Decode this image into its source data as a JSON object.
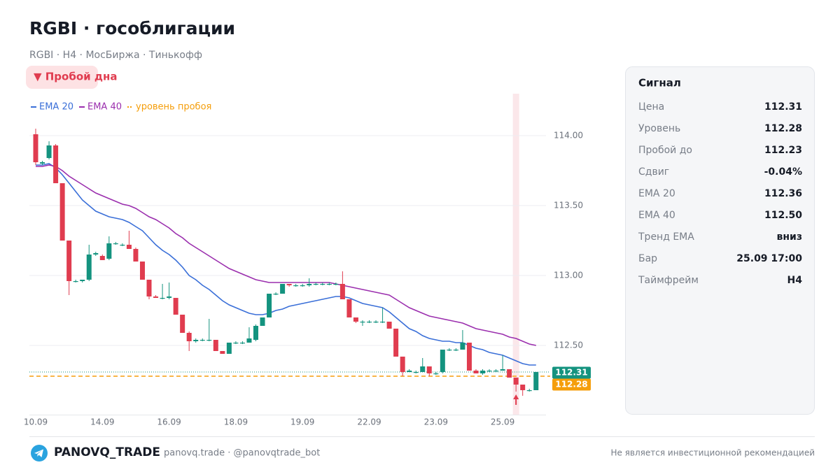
{
  "header": {
    "title": "RGBI · гособлигации",
    "subtitle": "RGBI · H4 · МосБиржа · Тинькофф",
    "badge": "▼  Пробой дна"
  },
  "chart_data": {
    "type": "candlestick",
    "categories": [
      "10.09",
      null,
      null,
      null,
      null,
      null,
      null,
      null,
      null,
      null,
      "14.09",
      null,
      null,
      null,
      null,
      null,
      null,
      null,
      null,
      null,
      "16.09",
      null,
      null,
      null,
      null,
      null,
      null,
      null,
      null,
      null,
      "18.09",
      null,
      null,
      null,
      null,
      null,
      null,
      null,
      null,
      null,
      "19.09",
      null,
      null,
      null,
      null,
      null,
      null,
      null,
      null,
      null,
      "22.09",
      null,
      null,
      null,
      null,
      null,
      null,
      null,
      null,
      null,
      "23.09",
      null,
      null,
      null,
      null,
      null,
      null,
      null,
      null,
      null,
      "25.09",
      null,
      null,
      null,
      null,
      null
    ],
    "open": [
      114.01,
      113.8,
      113.84,
      113.93,
      113.66,
      113.25,
      112.96,
      112.96,
      112.97,
      113.15,
      113.14,
      113.12,
      113.23,
      113.22,
      113.22,
      113.19,
      113.1,
      112.97,
      112.85,
      112.84,
      112.84,
      112.84,
      112.72,
      112.59,
      112.53,
      112.54,
      112.54,
      112.54,
      112.46,
      112.44,
      112.52,
      112.52,
      112.52,
      112.54,
      112.64,
      112.7,
      112.87,
      112.87,
      112.94,
      112.93,
      112.93,
      112.93,
      112.94,
      112.94,
      112.94,
      112.94,
      112.94,
      112.83,
      112.7,
      112.67,
      112.67,
      112.67,
      112.67,
      112.67,
      112.62,
      112.42,
      112.31,
      112.31,
      112.31,
      112.35,
      112.3,
      112.31,
      112.47,
      112.47,
      112.47,
      112.52,
      112.32,
      112.3,
      112.32,
      112.32,
      112.32,
      112.33,
      112.27,
      112.22,
      112.18,
      112.18
    ],
    "high": [
      114.05,
      113.82,
      113.96,
      113.94,
      113.66,
      113.25,
      112.97,
      112.97,
      113.22,
      113.17,
      113.15,
      113.28,
      113.24,
      113.23,
      113.32,
      113.2,
      113.1,
      112.97,
      112.86,
      112.94,
      112.95,
      112.84,
      112.72,
      112.6,
      112.55,
      112.55,
      112.69,
      112.54,
      112.46,
      112.52,
      112.53,
      112.53,
      112.63,
      112.65,
      112.7,
      112.87,
      112.88,
      112.94,
      112.94,
      112.94,
      112.94,
      112.98,
      112.95,
      112.95,
      112.95,
      112.95,
      113.03,
      112.83,
      112.7,
      112.68,
      112.68,
      112.68,
      112.77,
      112.67,
      112.62,
      112.42,
      112.33,
      112.32,
      112.41,
      112.35,
      112.31,
      112.47,
      112.48,
      112.48,
      112.61,
      112.52,
      112.33,
      112.33,
      112.33,
      112.33,
      112.43,
      112.33,
      112.27,
      112.22,
      112.19,
      112.31
    ],
    "low": [
      113.79,
      113.79,
      113.83,
      113.66,
      113.25,
      112.86,
      112.95,
      112.95,
      112.96,
      113.14,
      113.11,
      113.11,
      113.22,
      113.21,
      113.19,
      113.1,
      112.97,
      112.83,
      112.84,
      112.83,
      112.83,
      112.72,
      112.59,
      112.46,
      112.52,
      112.53,
      112.53,
      112.46,
      112.44,
      112.44,
      112.51,
      112.51,
      112.52,
      112.53,
      112.64,
      112.7,
      112.86,
      112.87,
      112.92,
      112.92,
      112.92,
      112.92,
      112.93,
      112.93,
      112.93,
      112.93,
      112.83,
      112.7,
      112.66,
      112.64,
      112.66,
      112.66,
      112.66,
      112.62,
      112.42,
      112.28,
      112.31,
      112.3,
      112.31,
      112.28,
      112.29,
      112.3,
      112.46,
      112.46,
      112.47,
      112.32,
      112.3,
      112.29,
      112.31,
      112.31,
      112.32,
      112.27,
      112.17,
      112.14,
      112.17,
      112.18
    ],
    "close": [
      113.81,
      113.81,
      113.93,
      113.66,
      113.25,
      112.96,
      112.96,
      112.97,
      113.15,
      113.16,
      113.11,
      113.23,
      113.23,
      113.22,
      113.19,
      113.1,
      112.97,
      112.85,
      112.84,
      112.84,
      112.85,
      112.72,
      112.59,
      112.53,
      112.54,
      112.54,
      112.54,
      112.46,
      112.44,
      112.52,
      112.52,
      112.52,
      112.55,
      112.64,
      112.7,
      112.87,
      112.87,
      112.94,
      112.93,
      112.93,
      112.93,
      112.94,
      112.94,
      112.94,
      112.94,
      112.94,
      112.83,
      112.7,
      112.67,
      112.67,
      112.67,
      112.67,
      112.67,
      112.62,
      112.42,
      112.31,
      112.32,
      112.31,
      112.35,
      112.3,
      112.3,
      112.47,
      112.47,
      112.47,
      112.52,
      112.32,
      112.3,
      112.32,
      112.32,
      112.32,
      112.33,
      112.27,
      112.22,
      112.18,
      112.18,
      112.31
    ],
    "up_color": "#14937f",
    "down_color": "#e03c4f",
    "series": [
      {
        "name": "EMA 20",
        "color": "#3a6fd8",
        "values": [
          113.79,
          113.79,
          113.8,
          113.77,
          113.72,
          113.66,
          113.6,
          113.54,
          113.5,
          113.46,
          113.44,
          113.42,
          113.41,
          113.4,
          113.38,
          113.35,
          113.32,
          113.27,
          113.22,
          113.18,
          113.15,
          113.11,
          113.06,
          113.0,
          112.97,
          112.93,
          112.9,
          112.86,
          112.82,
          112.79,
          112.77,
          112.75,
          112.73,
          112.72,
          112.72,
          112.73,
          112.75,
          112.76,
          112.78,
          112.79,
          112.8,
          112.81,
          112.82,
          112.83,
          112.84,
          112.85,
          112.85,
          112.84,
          112.82,
          112.8,
          112.79,
          112.78,
          112.77,
          112.74,
          112.7,
          112.66,
          112.62,
          112.6,
          112.57,
          112.55,
          112.54,
          112.53,
          112.53,
          112.52,
          112.52,
          112.5,
          112.48,
          112.47,
          112.45,
          112.44,
          112.43,
          112.41,
          112.39,
          112.37,
          112.36,
          112.36
        ]
      },
      {
        "name": "EMA 40",
        "color": "#9b2fae",
        "values": [
          113.78,
          113.78,
          113.79,
          113.78,
          113.75,
          113.71,
          113.68,
          113.65,
          113.62,
          113.59,
          113.57,
          113.55,
          113.53,
          113.51,
          113.5,
          113.48,
          113.45,
          113.42,
          113.4,
          113.37,
          113.34,
          113.3,
          113.27,
          113.23,
          113.2,
          113.17,
          113.14,
          113.11,
          113.08,
          113.05,
          113.03,
          113.01,
          112.99,
          112.97,
          112.96,
          112.95,
          112.95,
          112.95,
          112.95,
          112.95,
          112.95,
          112.95,
          112.95,
          112.95,
          112.95,
          112.94,
          112.93,
          112.92,
          112.91,
          112.9,
          112.89,
          112.88,
          112.87,
          112.86,
          112.83,
          112.8,
          112.77,
          112.75,
          112.73,
          112.71,
          112.7,
          112.69,
          112.68,
          112.67,
          112.66,
          112.64,
          112.62,
          112.61,
          112.6,
          112.59,
          112.58,
          112.56,
          112.55,
          112.53,
          112.51,
          112.5
        ]
      }
    ],
    "level": {
      "name": "уровень пробоя",
      "color": "#f59e0b",
      "value": 112.28
    },
    "last_price": {
      "value": 112.31,
      "color": "#14937f"
    },
    "highlight_index": 72,
    "ylim": [
      112.0,
      114.3
    ],
    "yticks": [
      {
        "value": 112.5,
        "label": "112.50"
      },
      {
        "value": 113,
        "label": "113.00"
      },
      {
        "value": 113.5,
        "label": "113.50"
      },
      {
        "value": 114,
        "label": "114.00"
      }
    ],
    "grid": true
  },
  "signal_panel": {
    "title": "Сигнал",
    "rows": [
      [
        "Цена",
        "112.31"
      ],
      [
        "Уровень",
        "112.28"
      ],
      [
        "Пробой до",
        "112.23"
      ],
      [
        "Сдвиг",
        "-0.04%"
      ],
      [
        "EMA 20",
        "112.36"
      ],
      [
        "EMA 40",
        "112.50"
      ],
      [
        "Тренд EMA",
        "вниз"
      ],
      [
        "Бар",
        "25.09 17:00"
      ],
      [
        "Таймфрейм",
        "H4"
      ]
    ]
  },
  "footer": {
    "brand": "PANOVQ_TRADE",
    "links": "panovq.trade · @panovqtrade_bot",
    "disclaimer": "Не является инвестиционной рекомендацией"
  }
}
